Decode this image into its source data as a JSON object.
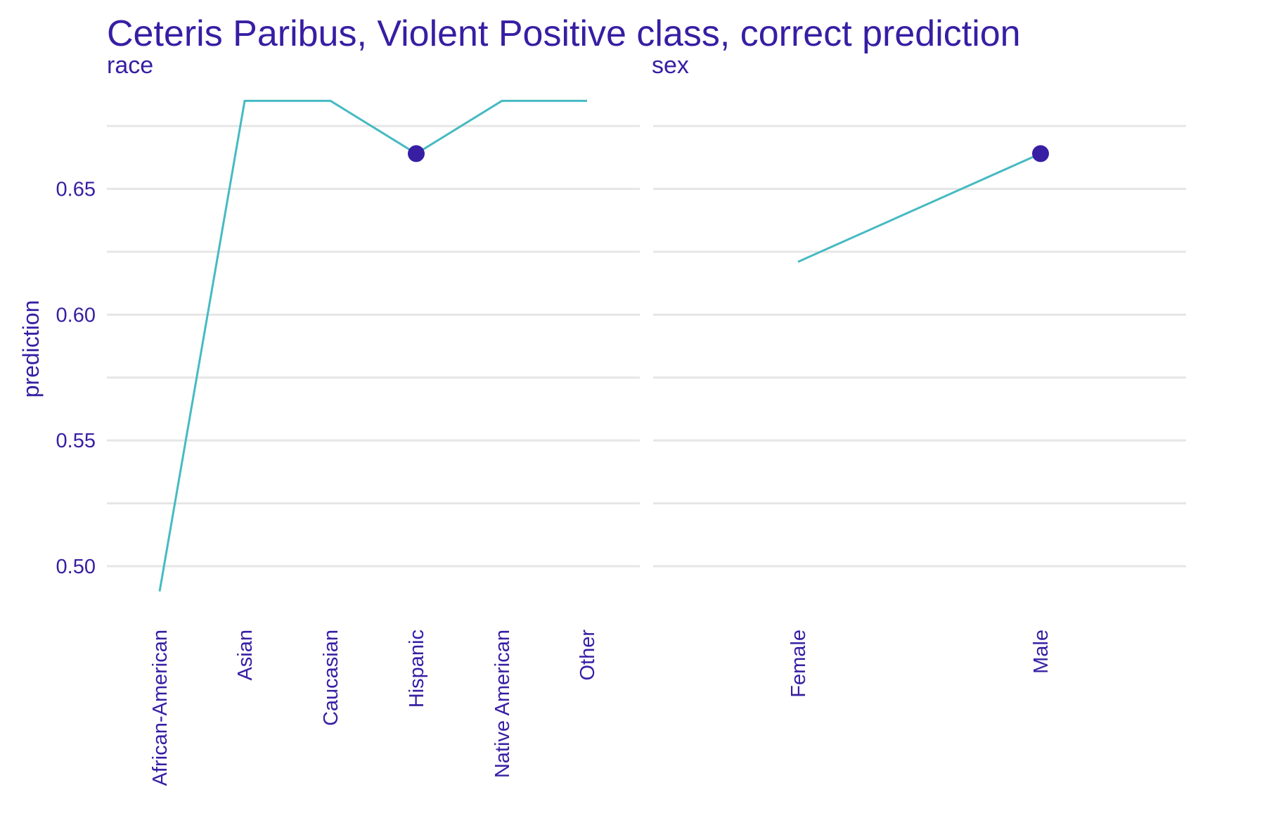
{
  "chart_data": {
    "type": "line",
    "title": "Ceteris Paribus, Violent Positive class, correct prediction",
    "ylabel": "prediction",
    "ylim": [
      0.48,
      0.69
    ],
    "y_ticks": [
      "0.50",
      "0.55",
      "0.60",
      "0.65"
    ],
    "grid": true,
    "colors": {
      "text": "#371ea3",
      "line": "#46bac2",
      "point": "#371ea3",
      "grid": "#e6e6e6"
    },
    "panels": [
      {
        "facet": "race",
        "categories": [
          "African-American",
          "Asian",
          "Caucasian",
          "Hispanic",
          "Native American",
          "Other"
        ],
        "values": [
          0.49,
          0.685,
          0.685,
          0.664,
          0.685,
          0.685
        ],
        "observed": {
          "category": "Hispanic",
          "value": 0.664
        }
      },
      {
        "facet": "sex",
        "categories": [
          "Female",
          "Male"
        ],
        "values": [
          0.621,
          0.664
        ],
        "observed": {
          "category": "Male",
          "value": 0.664
        }
      }
    ]
  }
}
